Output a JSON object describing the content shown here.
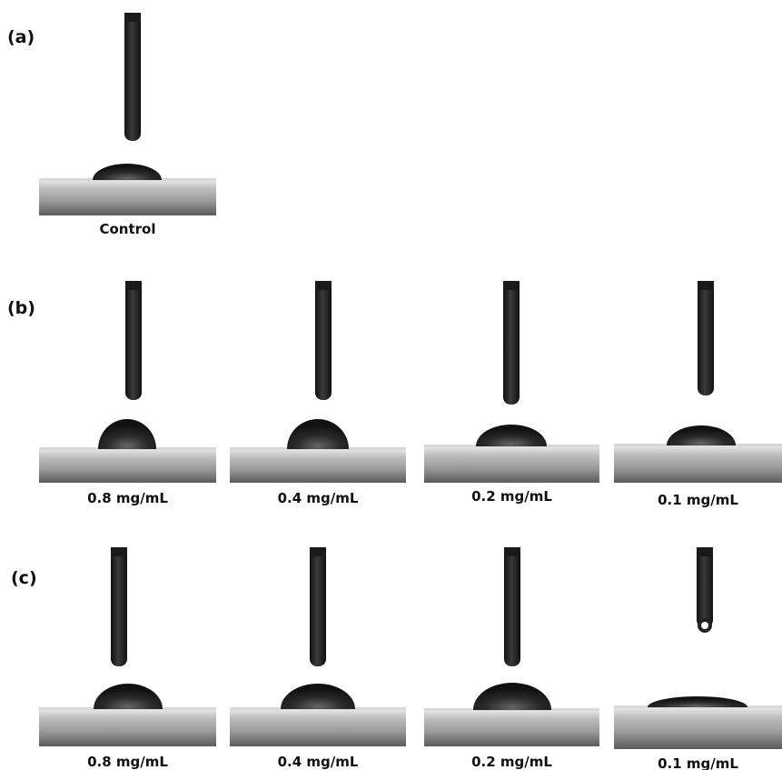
{
  "panels": [
    {
      "label": "(a)",
      "images": [
        {
          "caption": "Control"
        }
      ]
    },
    {
      "label": "(b)",
      "images": [
        {
          "caption": "0.8 mg/mL"
        },
        {
          "caption": "0.4 mg/mL"
        },
        {
          "caption": "0.2 mg/mL"
        },
        {
          "caption": "0.1 mg/mL"
        }
      ]
    },
    {
      "label": "(c)",
      "images": [
        {
          "caption": "0.8 mg/mL"
        },
        {
          "caption": "0.4 mg/mL"
        },
        {
          "caption": "0.2 mg/mL"
        },
        {
          "caption": "0.1 mg/mL"
        }
      ]
    }
  ]
}
